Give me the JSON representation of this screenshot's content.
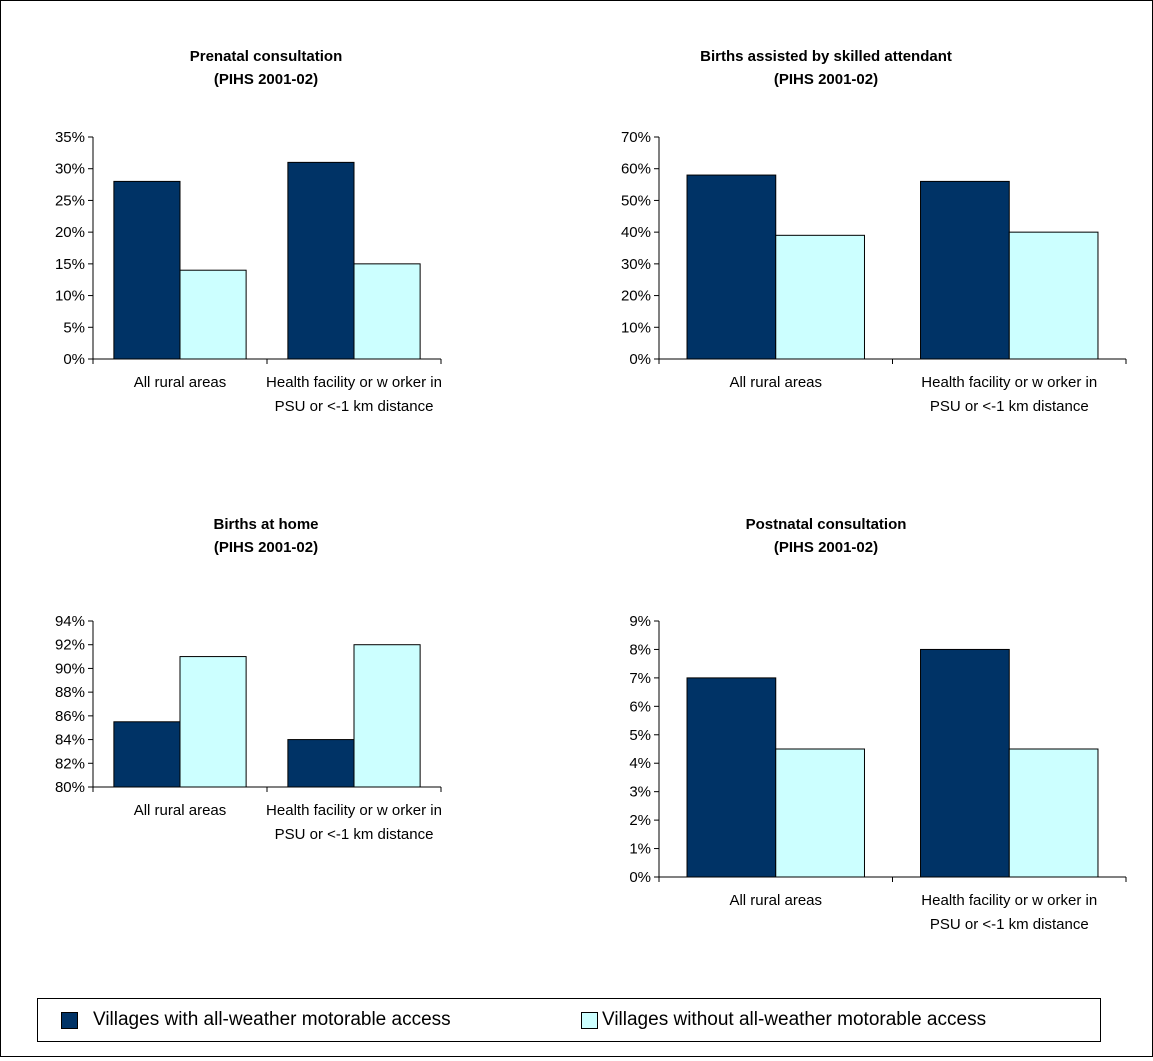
{
  "colors": {
    "series1": "#003366",
    "series2": "#ccffff"
  },
  "legend": [
    {
      "label": "Villages with all-weather motorable access"
    },
    {
      "label": "Villages without all-weather motorable access"
    }
  ],
  "chart_data": [
    {
      "type": "bar",
      "title": "Prenatal consultation",
      "subtitle": "(PIHS 2001-02)",
      "categories": [
        "All rural areas",
        "Health facility or w orker in PSU or <-1 km distance"
      ],
      "category_lines": [
        [
          "All rural areas"
        ],
        [
          "Health facility or w orker in",
          "PSU or <-1 km distance"
        ]
      ],
      "series": [
        {
          "name": "Villages with all-weather motorable access",
          "values": [
            28,
            31
          ]
        },
        {
          "name": "Villages without all-weather motorable access",
          "values": [
            14,
            15
          ]
        }
      ],
      "ylim": [
        0,
        35
      ],
      "yticks": [
        0,
        5,
        10,
        15,
        20,
        25,
        30,
        35
      ],
      "ytick_labels": [
        "0%",
        "5%",
        "10%",
        "15%",
        "20%",
        "25%",
        "30%",
        "35%"
      ],
      "grid": false,
      "legend": "bottom"
    },
    {
      "type": "bar",
      "title": "Births assisted by skilled attendant",
      "subtitle": "(PIHS 2001-02)",
      "categories": [
        "All rural areas",
        "Health facility or w orker in PSU or <-1 km distance"
      ],
      "category_lines": [
        [
          "All rural areas"
        ],
        [
          "Health facility or w orker in",
          "PSU or <-1 km distance"
        ]
      ],
      "series": [
        {
          "name": "Villages with all-weather motorable access",
          "values": [
            58,
            56
          ]
        },
        {
          "name": "Villages without all-weather motorable access",
          "values": [
            39,
            40
          ]
        }
      ],
      "ylim": [
        0,
        70
      ],
      "yticks": [
        0,
        10,
        20,
        30,
        40,
        50,
        60,
        70
      ],
      "ytick_labels": [
        "0%",
        "10%",
        "20%",
        "30%",
        "40%",
        "50%",
        "60%",
        "70%"
      ],
      "grid": false,
      "legend": "bottom"
    },
    {
      "type": "bar",
      "title": "Births at home",
      "subtitle": "(PIHS 2001-02)",
      "categories": [
        "All rural areas",
        "Health facility or w orker in PSU or <-1 km distance"
      ],
      "category_lines": [
        [
          "All rural areas"
        ],
        [
          "Health facility or w orker in",
          "PSU or <-1 km distance"
        ]
      ],
      "series": [
        {
          "name": "Villages with all-weather motorable access",
          "values": [
            85.5,
            84
          ]
        },
        {
          "name": "Villages without all-weather motorable access",
          "values": [
            91,
            92
          ]
        }
      ],
      "ylim": [
        80,
        94
      ],
      "yticks": [
        80,
        82,
        84,
        86,
        88,
        90,
        92,
        94
      ],
      "ytick_labels": [
        "80%",
        "82%",
        "84%",
        "86%",
        "88%",
        "90%",
        "92%",
        "94%"
      ],
      "grid": false,
      "legend": "bottom"
    },
    {
      "type": "bar",
      "title": "Postnatal consultation",
      "subtitle": "(PIHS 2001-02)",
      "categories": [
        "All rural areas",
        "Health facility or w orker in PSU or <-1 km distance"
      ],
      "category_lines": [
        [
          "All rural areas"
        ],
        [
          "Health facility or w orker in",
          "PSU or <-1 km distance"
        ]
      ],
      "series": [
        {
          "name": "Villages with all-weather motorable access",
          "values": [
            7,
            8
          ]
        },
        {
          "name": "Villages without all-weather motorable access",
          "values": [
            4.5,
            4.5
          ]
        }
      ],
      "ylim": [
        0,
        9
      ],
      "yticks": [
        0,
        1,
        2,
        3,
        4,
        5,
        6,
        7,
        8,
        9
      ],
      "ytick_labels": [
        "0%",
        "1%",
        "2%",
        "3%",
        "4%",
        "5%",
        "6%",
        "7%",
        "8%",
        "9%"
      ],
      "grid": false,
      "legend": "bottom"
    }
  ]
}
